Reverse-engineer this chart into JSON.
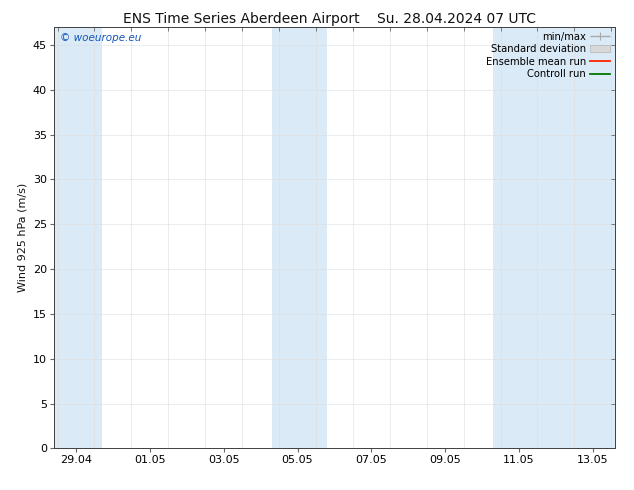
{
  "title_left": "ENS Time Series Aberdeen Airport",
  "title_right": "Su. 28.04.2024 07 UTC",
  "ylabel": "Wind 925 hPa (m/s)",
  "ylim": [
    0,
    47
  ],
  "yticks": [
    0,
    5,
    10,
    15,
    20,
    25,
    30,
    35,
    40,
    45
  ],
  "bg_color": "#ffffff",
  "plot_bg_color": "#ffffff",
  "band_color": "#daeaf7",
  "watermark": "© woeurope.eu",
  "watermark_color": "#1155bb",
  "legend_labels": [
    "min/max",
    "Standard deviation",
    "Ensemble mean run",
    "Controll run"
  ],
  "legend_line_colors": [
    "#aaaaaa",
    "#cccccc",
    "#ff2200",
    "#007700"
  ],
  "x_tick_labels": [
    "29.04",
    "01.05",
    "03.05",
    "05.05",
    "07.05",
    "09.05",
    "11.05",
    "13.05"
  ],
  "x_tick_positions": [
    0.5,
    2.5,
    4.5,
    6.5,
    8.5,
    10.5,
    12.5,
    14.5
  ],
  "x_minor_ticks": [
    0,
    1,
    2,
    3,
    4,
    5,
    6,
    7,
    8,
    9,
    10,
    11,
    12,
    13,
    14,
    15
  ],
  "shaded_bands": [
    [
      -0.1,
      1.2
    ],
    [
      5.8,
      6.5
    ],
    [
      6.5,
      7.3
    ],
    [
      11.8,
      12.6
    ],
    [
      12.6,
      15.1
    ]
  ],
  "x_min": -0.1,
  "x_max": 15.1,
  "title_fontsize": 10,
  "axis_fontsize": 8,
  "tick_fontsize": 8
}
